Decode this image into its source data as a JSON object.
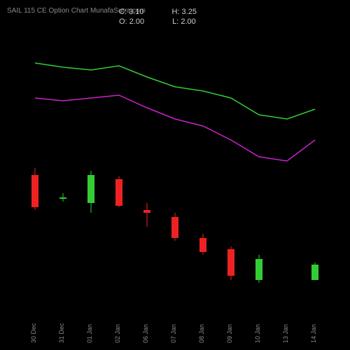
{
  "title": "SAIL 115 CE Option Chart MunafaSutra.com",
  "ohlc": {
    "C": "3.10",
    "O": "2.00",
    "H": "3.25",
    "L": "2.00"
  },
  "chart": {
    "type": "candlestick-with-lines",
    "background_color": "#000000",
    "text_color": "#cccccc",
    "axis_color": "#888888",
    "x_categories": [
      "30 Dec",
      "31 Dec",
      "01 Jan",
      "02 Jan",
      "06 Jan",
      "07 Jan",
      "08 Jan",
      "09 Jan",
      "10 Jan",
      "13 Jan",
      "14 Jan"
    ],
    "y_range": [
      0,
      20
    ],
    "candle_width": 10,
    "wick_width": 1,
    "up_color": "#33cc33",
    "down_color": "#ee2222",
    "candles": [
      {
        "o": 9.5,
        "h": 10.0,
        "l": 7.0,
        "c": 7.2
      },
      {
        "o": 7.8,
        "h": 8.2,
        "l": 7.6,
        "c": 7.9
      },
      {
        "o": 7.5,
        "h": 9.8,
        "l": 6.8,
        "c": 9.5
      },
      {
        "o": 9.2,
        "h": 9.4,
        "l": 7.2,
        "c": 7.3
      },
      {
        "o": 7.0,
        "h": 7.5,
        "l": 5.8,
        "c": 6.8
      },
      {
        "o": 6.5,
        "h": 6.8,
        "l": 4.8,
        "c": 5.0
      },
      {
        "o": 5.0,
        "h": 5.3,
        "l": 3.8,
        "c": 4.0
      },
      {
        "o": 4.2,
        "h": 4.4,
        "l": 2.0,
        "c": 2.3
      },
      {
        "o": 2.0,
        "h": 3.8,
        "l": 1.8,
        "c": 3.5
      },
      null,
      {
        "o": 2.0,
        "h": 3.25,
        "l": 2.0,
        "c": 3.1
      }
    ],
    "lines": [
      {
        "color": "#33cc33",
        "width": 1.5,
        "y": [
          17.5,
          17.2,
          17.0,
          17.3,
          16.5,
          15.8,
          15.5,
          15.0,
          13.8,
          13.5,
          14.2
        ]
      },
      {
        "color": "#cc22cc",
        "width": 1.5,
        "y": [
          15.0,
          14.8,
          15.0,
          15.2,
          14.3,
          13.5,
          13.0,
          12.0,
          10.8,
          10.5,
          12.0
        ]
      }
    ]
  }
}
